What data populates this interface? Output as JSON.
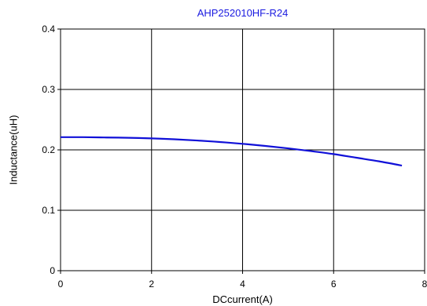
{
  "chart_data": {
    "type": "line",
    "title": "AHP252010HF-R24",
    "xlabel": "DCcurrent(A)",
    "ylabel": "Inductance(uH)",
    "xlim": [
      0,
      8
    ],
    "ylim": [
      0,
      0.4
    ],
    "x_ticks": [
      "0",
      "2",
      "4",
      "6",
      "8"
    ],
    "y_ticks": [
      "0",
      "0.1",
      "0.2",
      "0.3",
      "0.4"
    ],
    "grid": true,
    "colors": {
      "series": "#1010d8",
      "title": "#1a1ae0",
      "grid": "#000000"
    },
    "series": [
      {
        "x": [
          0,
          0.5,
          1,
          1.5,
          2,
          2.5,
          3,
          3.5,
          4,
          4.5,
          5,
          5.5,
          6,
          6.5,
          7,
          7.5
        ],
        "y": [
          0.221,
          0.221,
          0.2205,
          0.22,
          0.219,
          0.2175,
          0.2155,
          0.213,
          0.21,
          0.2065,
          0.2025,
          0.198,
          0.193,
          0.187,
          0.181,
          0.174
        ]
      }
    ]
  }
}
